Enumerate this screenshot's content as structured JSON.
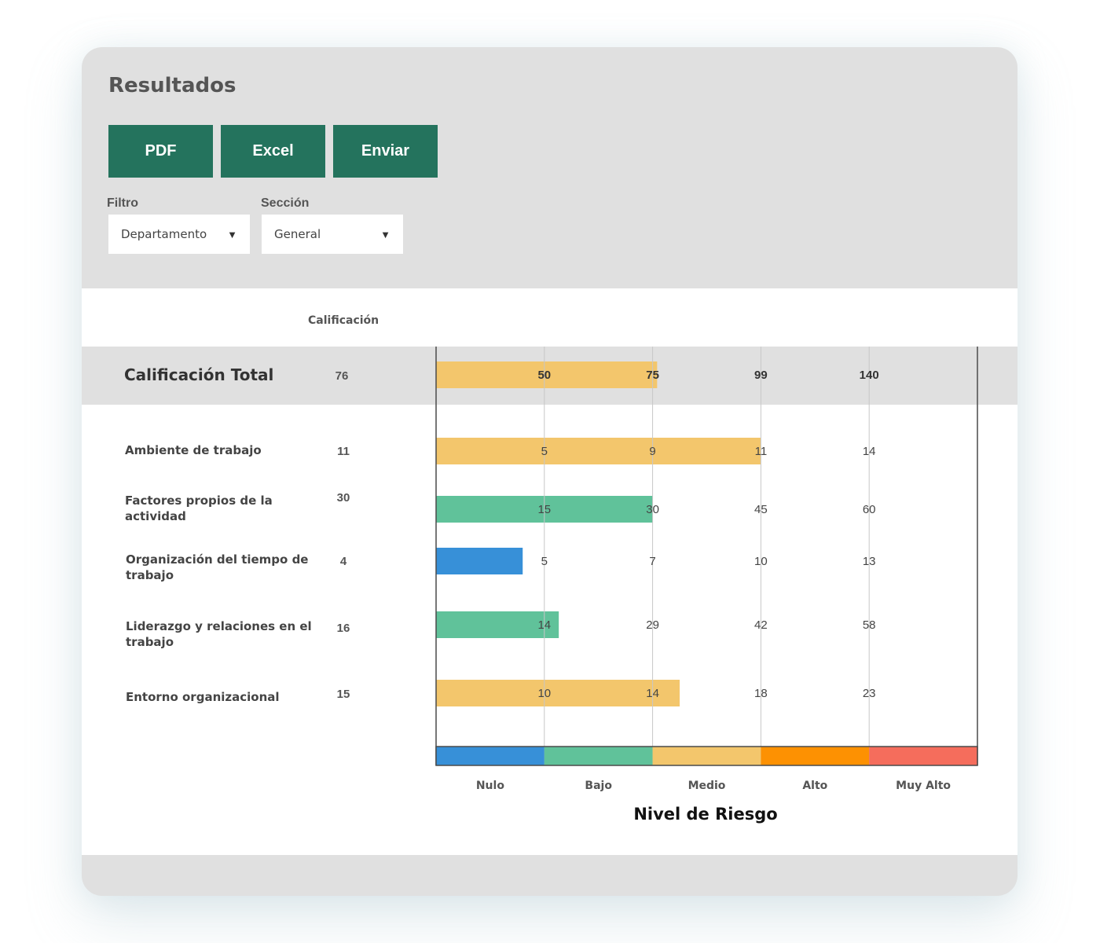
{
  "page": {
    "title": "Resultados"
  },
  "toolbar": {
    "pdf_label": "PDF",
    "excel_label": "Excel",
    "send_label": "Enviar"
  },
  "filters": {
    "filter": {
      "label": "Filtro",
      "value": "Departamento"
    },
    "section": {
      "label": "Sección",
      "value": "General"
    }
  },
  "table": {
    "score_header": "Calificación",
    "total": {
      "label": "Calificación Total",
      "score": "76"
    },
    "rows": [
      {
        "label": "Ambiente de trabajo",
        "score": "11"
      },
      {
        "label": "Factores propios de la actividad",
        "score": "30"
      },
      {
        "label": "Organización del tiempo de trabajo",
        "score": "4"
      },
      {
        "label": "Liderazgo y relaciones en el trabajo",
        "score": "16"
      },
      {
        "label": "Entorno organizacional",
        "score": "15"
      }
    ]
  },
  "chart_data": {
    "type": "bar",
    "orientation": "horizontal",
    "axis_title": "Nivel de Riesgo",
    "risk_levels": [
      {
        "name": "Nulo",
        "color": "#3790d8"
      },
      {
        "name": "Bajo",
        "color": "#60c29a"
      },
      {
        "name": "Medio",
        "color": "#f3c66c"
      },
      {
        "name": "Alto",
        "color": "#fd9102"
      },
      {
        "name": "Muy Alto",
        "color": "#f56d5c"
      }
    ],
    "rows": [
      {
        "category": "Calificación Total",
        "value": 76,
        "thresholds": [
          50,
          75,
          99,
          140
        ],
        "level": "Medio",
        "bold_labels": true
      },
      {
        "category": "Ambiente de trabajo",
        "value": 11,
        "thresholds": [
          5,
          9,
          11,
          14
        ],
        "level": "Medio"
      },
      {
        "category": "Factores propios de la actividad",
        "value": 30,
        "thresholds": [
          15,
          30,
          45,
          60
        ],
        "level": "Bajo"
      },
      {
        "category": "Organización del tiempo de trabajo",
        "value": 4,
        "thresholds": [
          5,
          7,
          10,
          13
        ],
        "level": "Nulo"
      },
      {
        "category": "Liderazgo y relaciones en el trabajo",
        "value": 16,
        "thresholds": [
          14,
          29,
          42,
          58
        ],
        "level": "Bajo"
      },
      {
        "category": "Entorno organizacional",
        "value": 15,
        "thresholds": [
          10,
          14,
          18,
          23
        ],
        "level": "Medio"
      }
    ]
  }
}
